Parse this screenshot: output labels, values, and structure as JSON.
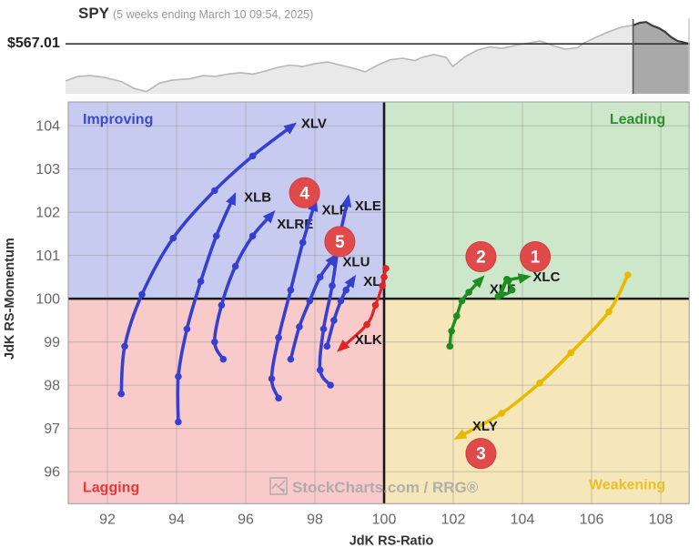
{
  "header": {
    "symbol": "SPY",
    "subtitle": "(5 weeks ending March 10 09:54, 2025)",
    "price_label": "$567.01"
  },
  "watermark": {
    "text": "StockCharts.com / RRG®"
  },
  "colors": {
    "blue": "#3640cf",
    "red": "#e02525",
    "green": "#1f8c1f",
    "yellow": "#e7ba00",
    "badge": "#e04a4a",
    "crosshair": "#1a1a1a",
    "grid": "#8f8f8f",
    "tick_text": "#666666",
    "axis_title": "#333333",
    "spark_fill": "#e9e9e9",
    "spark_line": "#b7b7b7",
    "spark_hl_fill": "#a9a9a9",
    "spark_hl_line": "#3d3d3d",
    "price_line": "#333333"
  },
  "chart_data": [
    {
      "type": "area",
      "title": "SPY",
      "subtitle": "(5 weeks ending March 10 09:54, 2025)",
      "price_label": "$567.01",
      "price_value": 567.01,
      "price_level_pct": 34,
      "highlight_start_pct": 90.9,
      "points_pct": [
        [
          0,
          83
        ],
        [
          2,
          77
        ],
        [
          4,
          76
        ],
        [
          6,
          78
        ],
        [
          9,
          84
        ],
        [
          11,
          93
        ],
        [
          13,
          97
        ],
        [
          15,
          86
        ],
        [
          17,
          82
        ],
        [
          20,
          80
        ],
        [
          22,
          76
        ],
        [
          24,
          77
        ],
        [
          26,
          74
        ],
        [
          28,
          72
        ],
        [
          30,
          74
        ],
        [
          32,
          70
        ],
        [
          34,
          65
        ],
        [
          36,
          62
        ],
        [
          38,
          64
        ],
        [
          40,
          60
        ],
        [
          42,
          58
        ],
        [
          44,
          62
        ],
        [
          46,
          66
        ],
        [
          48,
          71
        ],
        [
          50,
          62
        ],
        [
          52,
          55
        ],
        [
          54,
          53
        ],
        [
          56,
          56
        ],
        [
          57,
          52
        ],
        [
          59,
          48
        ],
        [
          61,
          52
        ],
        [
          62,
          64
        ],
        [
          64,
          51
        ],
        [
          66,
          42
        ],
        [
          68,
          38
        ],
        [
          70,
          40
        ],
        [
          72,
          36
        ],
        [
          74,
          33
        ],
        [
          76,
          30
        ],
        [
          78,
          36
        ],
        [
          80,
          41
        ],
        [
          82,
          39
        ],
        [
          83,
          33
        ],
        [
          85,
          25
        ],
        [
          87,
          18
        ],
        [
          89,
          12
        ],
        [
          91,
          9
        ],
        [
          92,
          6
        ],
        [
          93,
          5
        ],
        [
          94,
          10
        ],
        [
          95,
          13
        ],
        [
          96,
          18
        ],
        [
          97,
          25
        ],
        [
          98,
          30
        ],
        [
          99,
          32
        ],
        [
          100,
          34
        ]
      ]
    },
    {
      "type": "scatter",
      "subtype": "rrg-trails",
      "xlabel": "JdK RS-Ratio",
      "ylabel": "JdK RS-Momentum",
      "x_ticks": [
        92,
        94,
        96,
        98,
        100,
        102,
        104,
        106,
        108
      ],
      "y_ticks": [
        96,
        97,
        98,
        99,
        100,
        101,
        102,
        103,
        104
      ],
      "x_range": [
        90.868,
        108.82
      ],
      "y_range": [
        95.26,
        104.55
      ],
      "grid": true,
      "quadrants": [
        {
          "key": "improving",
          "label": "Improving",
          "bg": "#c7cbf0",
          "fg": "#3b4cc9"
        },
        {
          "key": "leading",
          "label": "Leading",
          "bg": "#cde7cb",
          "fg": "#2f8f2f"
        },
        {
          "key": "lagging",
          "label": "Lagging",
          "bg": "#f9caca",
          "fg": "#e23b3b"
        },
        {
          "key": "weakening",
          "label": "Weakening",
          "bg": "#f6e7ba",
          "fg": "#e9c12a"
        }
      ],
      "series": [
        {
          "name": "XLV",
          "color": "blue",
          "points": [
            [
              92.4,
              97.8
            ],
            [
              92.5,
              98.9
            ],
            [
              93.0,
              100.1
            ],
            [
              93.9,
              101.4
            ],
            [
              95.1,
              102.5
            ],
            [
              96.2,
              103.3
            ],
            [
              97.35,
              104.0
            ]
          ],
          "label_at": [
            97.6,
            103.95
          ]
        },
        {
          "name": "XLB",
          "color": "blue",
          "points": [
            [
              94.05,
              97.15
            ],
            [
              94.05,
              98.2
            ],
            [
              94.3,
              99.3
            ],
            [
              94.7,
              100.4
            ],
            [
              95.15,
              101.45
            ],
            [
              95.65,
              102.35
            ]
          ],
          "label_at": [
            95.95,
            102.25
          ]
        },
        {
          "name": "XLRE",
          "color": "blue",
          "points": [
            [
              95.35,
              98.6
            ],
            [
              95.1,
              99.0
            ],
            [
              95.3,
              99.85
            ],
            [
              95.7,
              100.75
            ],
            [
              96.2,
              101.45
            ],
            [
              96.75,
              101.95
            ]
          ],
          "label_at": [
            96.9,
            101.62
          ]
        },
        {
          "name": "XLP",
          "color": "blue",
          "points": [
            [
              96.95,
              97.7
            ],
            [
              96.75,
              98.15
            ],
            [
              96.95,
              99.1
            ],
            [
              97.3,
              100.2
            ],
            [
              97.65,
              101.3
            ],
            [
              98.0,
              102.2
            ]
          ],
          "label_at": [
            98.2,
            101.95
          ]
        },
        {
          "name": "XLE",
          "color": "blue",
          "points": [
            [
              98.45,
              98.0
            ],
            [
              98.15,
              98.35
            ],
            [
              98.25,
              99.3
            ],
            [
              98.5,
              100.3
            ],
            [
              98.7,
              101.35
            ],
            [
              98.95,
              102.3
            ]
          ],
          "label_at": [
            99.15,
            102.05
          ]
        },
        {
          "name": "XLU",
          "color": "blue",
          "points": [
            [
              97.3,
              98.6
            ],
            [
              97.55,
              99.35
            ],
            [
              97.85,
              99.95
            ],
            [
              98.15,
              100.5
            ],
            [
              98.55,
              100.95
            ]
          ],
          "label_at": [
            98.8,
            100.75
          ]
        },
        {
          "name": "XLI",
          "color": "blue",
          "points": [
            [
              98.35,
              98.9
            ],
            [
              98.55,
              99.5
            ],
            [
              98.75,
              99.95
            ],
            [
              98.9,
              100.2
            ],
            [
              99.1,
              100.45
            ]
          ],
          "label_at": [
            99.4,
            100.3
          ]
        },
        {
          "name": "XLK",
          "color": "red",
          "points": [
            [
              100.05,
              100.7
            ],
            [
              100.0,
              100.5
            ],
            [
              99.95,
              100.3
            ],
            [
              99.75,
              99.85
            ],
            [
              99.5,
              99.4
            ],
            [
              98.75,
              98.85
            ]
          ],
          "label_at": [
            99.15,
            98.95
          ]
        },
        {
          "name": "XLF",
          "color": "green",
          "points": [
            [
              101.9,
              98.9
            ],
            [
              101.95,
              99.25
            ],
            [
              102.1,
              99.6
            ],
            [
              102.25,
              99.95
            ],
            [
              102.45,
              100.15
            ],
            [
              102.8,
              100.45
            ]
          ],
          "label_at": [
            103.05,
            100.12
          ]
        },
        {
          "name": "XLC",
          "color": "green",
          "points": [
            [
              103.3,
              100.05
            ],
            [
              103.55,
              100.45
            ],
            [
              103.4,
              100.1
            ],
            [
              103.7,
              100.2
            ],
            [
              103.6,
              100.42
            ],
            [
              104.1,
              100.5
            ]
          ],
          "label_at": [
            104.3,
            100.4
          ]
        },
        {
          "name": "XLY",
          "color": "yellow",
          "points": [
            [
              107.05,
              100.55
            ],
            [
              106.5,
              99.7
            ],
            [
              105.4,
              98.75
            ],
            [
              104.5,
              98.05
            ],
            [
              103.4,
              97.35
            ],
            [
              102.15,
              96.8
            ]
          ],
          "label_at": [
            102.55,
            96.95
          ]
        }
      ],
      "badges": [
        {
          "n": "1",
          "at": [
            104.37,
            100.97
          ]
        },
        {
          "n": "2",
          "at": [
            102.8,
            100.97
          ]
        },
        {
          "n": "3",
          "at": [
            102.8,
            96.42
          ]
        },
        {
          "n": "4",
          "at": [
            97.7,
            102.45
          ]
        },
        {
          "n": "5",
          "at": [
            98.72,
            101.32
          ]
        }
      ],
      "watermark": "StockCharts.com / RRG®"
    }
  ]
}
